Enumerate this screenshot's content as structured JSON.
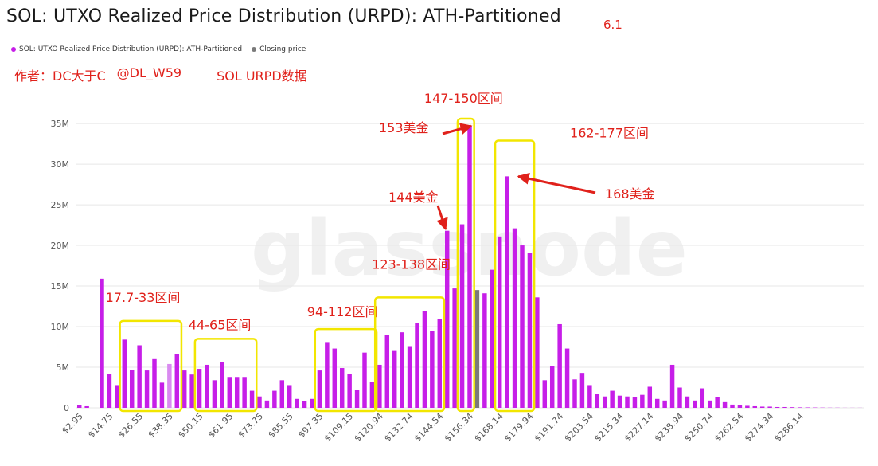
{
  "title": "SOL: UTXO Realized Price Distribution (URPD): ATH-Partitioned",
  "corner_note": "6.1",
  "legend": [
    {
      "label": "SOL: UTXO Realized Price Distribution (URPD): ATH-Partitioned",
      "color": "#c61ee8"
    },
    {
      "label": "Closing price",
      "color": "#7a7a7a"
    }
  ],
  "author_line": {
    "author": "作者：DC大于C",
    "handle": "@DL_W59",
    "subject": "SOL URPD数据"
  },
  "watermark": "glassnode",
  "colors": {
    "bar": "#c61ee8",
    "bar_highlight": "#d98af0",
    "closing_bar": "#7a7a7a",
    "annotation": "#e0211b",
    "box": "#f2e600"
  },
  "chart_data": {
    "type": "bar",
    "series": [
      {
        "name": "SOL: UTXO Realized Price Distribution (URPD): ATH-Partitioned",
        "values": [
          0.3,
          0.2,
          0,
          15.9,
          4.2,
          2.8,
          8.4,
          4.7,
          7.7,
          4.6,
          6,
          3.1,
          5.4,
          6.6,
          4.6,
          4.1,
          4.8,
          5.3,
          3.4,
          5.6,
          3.8,
          3.8,
          3.8,
          2.1,
          1.4,
          0.9,
          2.1,
          3.4,
          2.8,
          1.1,
          0.8,
          1.1,
          4.6,
          8.1,
          7.3,
          4.9,
          4.2,
          2.2,
          6.8,
          3.2,
          5.3,
          9,
          7,
          9.3,
          7.6,
          10.4,
          11.9,
          9.5,
          10.9,
          21.8,
          14.7,
          22.6,
          34.7,
          14.5,
          14.1,
          17,
          21.1,
          28.5,
          22.1,
          20,
          19.1,
          13.6,
          3.4,
          5.1,
          10.3,
          7.3,
          3.5,
          4.3,
          2.8,
          1.7,
          1.4,
          2.1,
          1.5,
          1.4,
          1.3,
          1.6,
          2.6,
          1.1,
          0.9,
          5.3,
          2.5,
          1.4,
          0.9,
          2.4,
          0.9,
          1.3,
          0.7,
          0.4,
          0.3,
          0.25,
          0.2,
          0.15,
          0.15,
          0.1,
          0.1,
          0.08,
          0.06,
          0.05,
          0.04,
          0.03,
          0.02,
          0.02,
          0.01,
          0.01,
          0.01
        ]
      }
    ],
    "closing_price_index": 53,
    "highlight_index": 12,
    "x_tick_labels": [
      "$2.95",
      "$14.75",
      "$26.55",
      "$38.35",
      "$50.15",
      "$61.95",
      "$73.75",
      "$85.55",
      "$97.35",
      "$109.15",
      "$120.94",
      "$132.74",
      "$144.54",
      "$156.34",
      "$168.14",
      "$179.94",
      "$191.74",
      "$203.54",
      "$215.34",
      "$227.14",
      "$238.94",
      "$250.74",
      "$262.54",
      "$274.34",
      "$286.14"
    ],
    "y_ticks": [
      0,
      5,
      10,
      15,
      20,
      25,
      30,
      35
    ],
    "y_tick_labels": [
      "0",
      "5M",
      "10M",
      "15M",
      "20M",
      "25M",
      "30M",
      "35M"
    ],
    "ylim": [
      0,
      35.5
    ],
    "y_unit": "M",
    "grid": true,
    "legend_position": "top-left"
  },
  "annotations": {
    "boxes": [
      {
        "label": "17.7-33区间",
        "from": 6,
        "to": 13,
        "top": 10.7
      },
      {
        "label": "44-65区间",
        "from": 16,
        "to": 23,
        "top": 8.5
      },
      {
        "label": "94-112区间",
        "from": 32,
        "to": 39,
        "top": 9.7
      },
      {
        "label": "123-138区间",
        "from": 40,
        "to": 48,
        "top": 13.6
      },
      {
        "label": "147-150区间",
        "from": 51,
        "to": 52,
        "top": 35.6
      },
      {
        "label": "162-177区间",
        "from": 56,
        "to": 60,
        "top": 32.9
      }
    ],
    "price_callouts": [
      {
        "label": "153美金",
        "target_index": 52
      },
      {
        "label": "144美金",
        "target_index": 49
      },
      {
        "label": "168美金",
        "target_index": 57
      }
    ]
  }
}
